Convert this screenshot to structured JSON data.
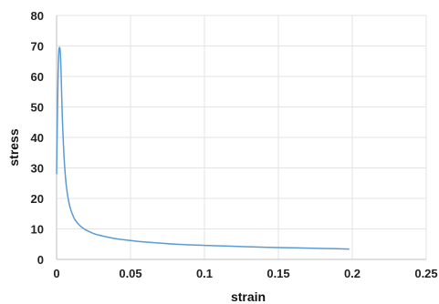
{
  "chart_data": {
    "type": "line",
    "title": "",
    "xlabel": "strain",
    "ylabel": "stress",
    "xlim": [
      0,
      0.25
    ],
    "ylim": [
      0,
      80
    ],
    "x_ticks": [
      "0",
      "0.05",
      "0.1",
      "0.15",
      "0.2",
      "0.25"
    ],
    "x_tick_values": [
      0,
      0.05,
      0.1,
      0.15,
      0.2,
      0.25
    ],
    "y_ticks": [
      "0",
      "10",
      "20",
      "30",
      "40",
      "50",
      "60",
      "70",
      "80"
    ],
    "y_tick_values": [
      0,
      10,
      20,
      30,
      40,
      50,
      60,
      70,
      80
    ],
    "grid": true,
    "legend": "none",
    "series": [
      {
        "color": "#5b9bd5",
        "x": [
          0,
          0.0005,
          0.001,
          0.0015,
          0.002,
          0.0025,
          0.003,
          0.0035,
          0.004,
          0.005,
          0.006,
          0.007,
          0.008,
          0.009,
          0.01,
          0.012,
          0.014,
          0.016,
          0.018,
          0.02,
          0.025,
          0.03,
          0.04,
          0.05,
          0.06,
          0.08,
          0.1,
          0.12,
          0.14,
          0.16,
          0.18,
          0.198
        ],
        "y": [
          28,
          45,
          60,
          68,
          69.5,
          68,
          62,
          53,
          45,
          34,
          27,
          22.5,
          19.5,
          17.3,
          15.7,
          13.4,
          12.0,
          11.0,
          10.2,
          9.6,
          8.5,
          7.8,
          6.8,
          6.2,
          5.7,
          5.0,
          4.6,
          4.3,
          4.0,
          3.8,
          3.6,
          3.4
        ]
      }
    ]
  }
}
